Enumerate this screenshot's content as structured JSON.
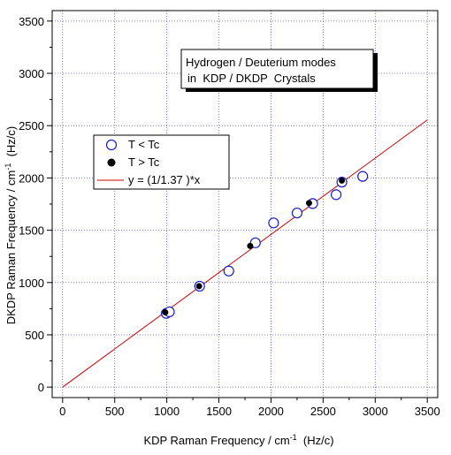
{
  "chart_data": {
    "type": "scatter",
    "annotation": {
      "line1": "Hydrogen / Deuterium modes",
      "line2": "in  KDP / DKDP  Crystals"
    },
    "xlabel": {
      "text": "KDP Raman Frequency / cm",
      "sup": "-1",
      "tail": "  (Hz/c)"
    },
    "ylabel": {
      "text": "DKDP Raman Frequency / cm",
      "sup": "-1",
      "tail": "  (Hz/c)"
    },
    "xlim": [
      -100,
      3600
    ],
    "ylim": [
      -100,
      3600
    ],
    "x_ticks": [
      0,
      500,
      1000,
      1500,
      2000,
      2500,
      3000,
      3500
    ],
    "y_ticks": [
      0,
      500,
      1000,
      1500,
      2000,
      2500,
      3000,
      3500
    ],
    "x_tick_labels": [
      "0",
      "500",
      "1000",
      "1500",
      "2000",
      "2500",
      "3000",
      "3500"
    ],
    "y_tick_labels": [
      "0",
      "500",
      "1000",
      "1500",
      "2000",
      "2500",
      "3000",
      "3500"
    ],
    "grid": true,
    "legend_position": "upper-left",
    "legend": [
      {
        "label": "T < Tc",
        "marker": "open-circle"
      },
      {
        "label": "T > Tc",
        "marker": "filled-circle"
      },
      {
        "label": "y = (1/1.37 )*x",
        "marker": "line"
      }
    ],
    "series": [
      {
        "marker": "open-circle",
        "color": "#1a1acc",
        "points": [
          {
            "x": 995,
            "y": 705
          },
          {
            "x": 1025,
            "y": 720
          },
          {
            "x": 1315,
            "y": 965
          },
          {
            "x": 1595,
            "y": 1110
          },
          {
            "x": 1850,
            "y": 1380
          },
          {
            "x": 2025,
            "y": 1570
          },
          {
            "x": 2250,
            "y": 1665
          },
          {
            "x": 2400,
            "y": 1755
          },
          {
            "x": 2625,
            "y": 1840
          },
          {
            "x": 2680,
            "y": 1960
          },
          {
            "x": 2880,
            "y": 2015
          }
        ]
      },
      {
        "marker": "filled-circle",
        "color": "#000000",
        "points": [
          {
            "x": 985,
            "y": 715
          },
          {
            "x": 1310,
            "y": 965
          },
          {
            "x": 1800,
            "y": 1350
          },
          {
            "x": 2365,
            "y": 1760
          },
          {
            "x": 2680,
            "y": 1975
          }
        ]
      },
      {
        "type": "line",
        "color": "#cc0000",
        "slope_divisor": 1.37,
        "x_range": [
          0,
          3500
        ]
      }
    ]
  }
}
